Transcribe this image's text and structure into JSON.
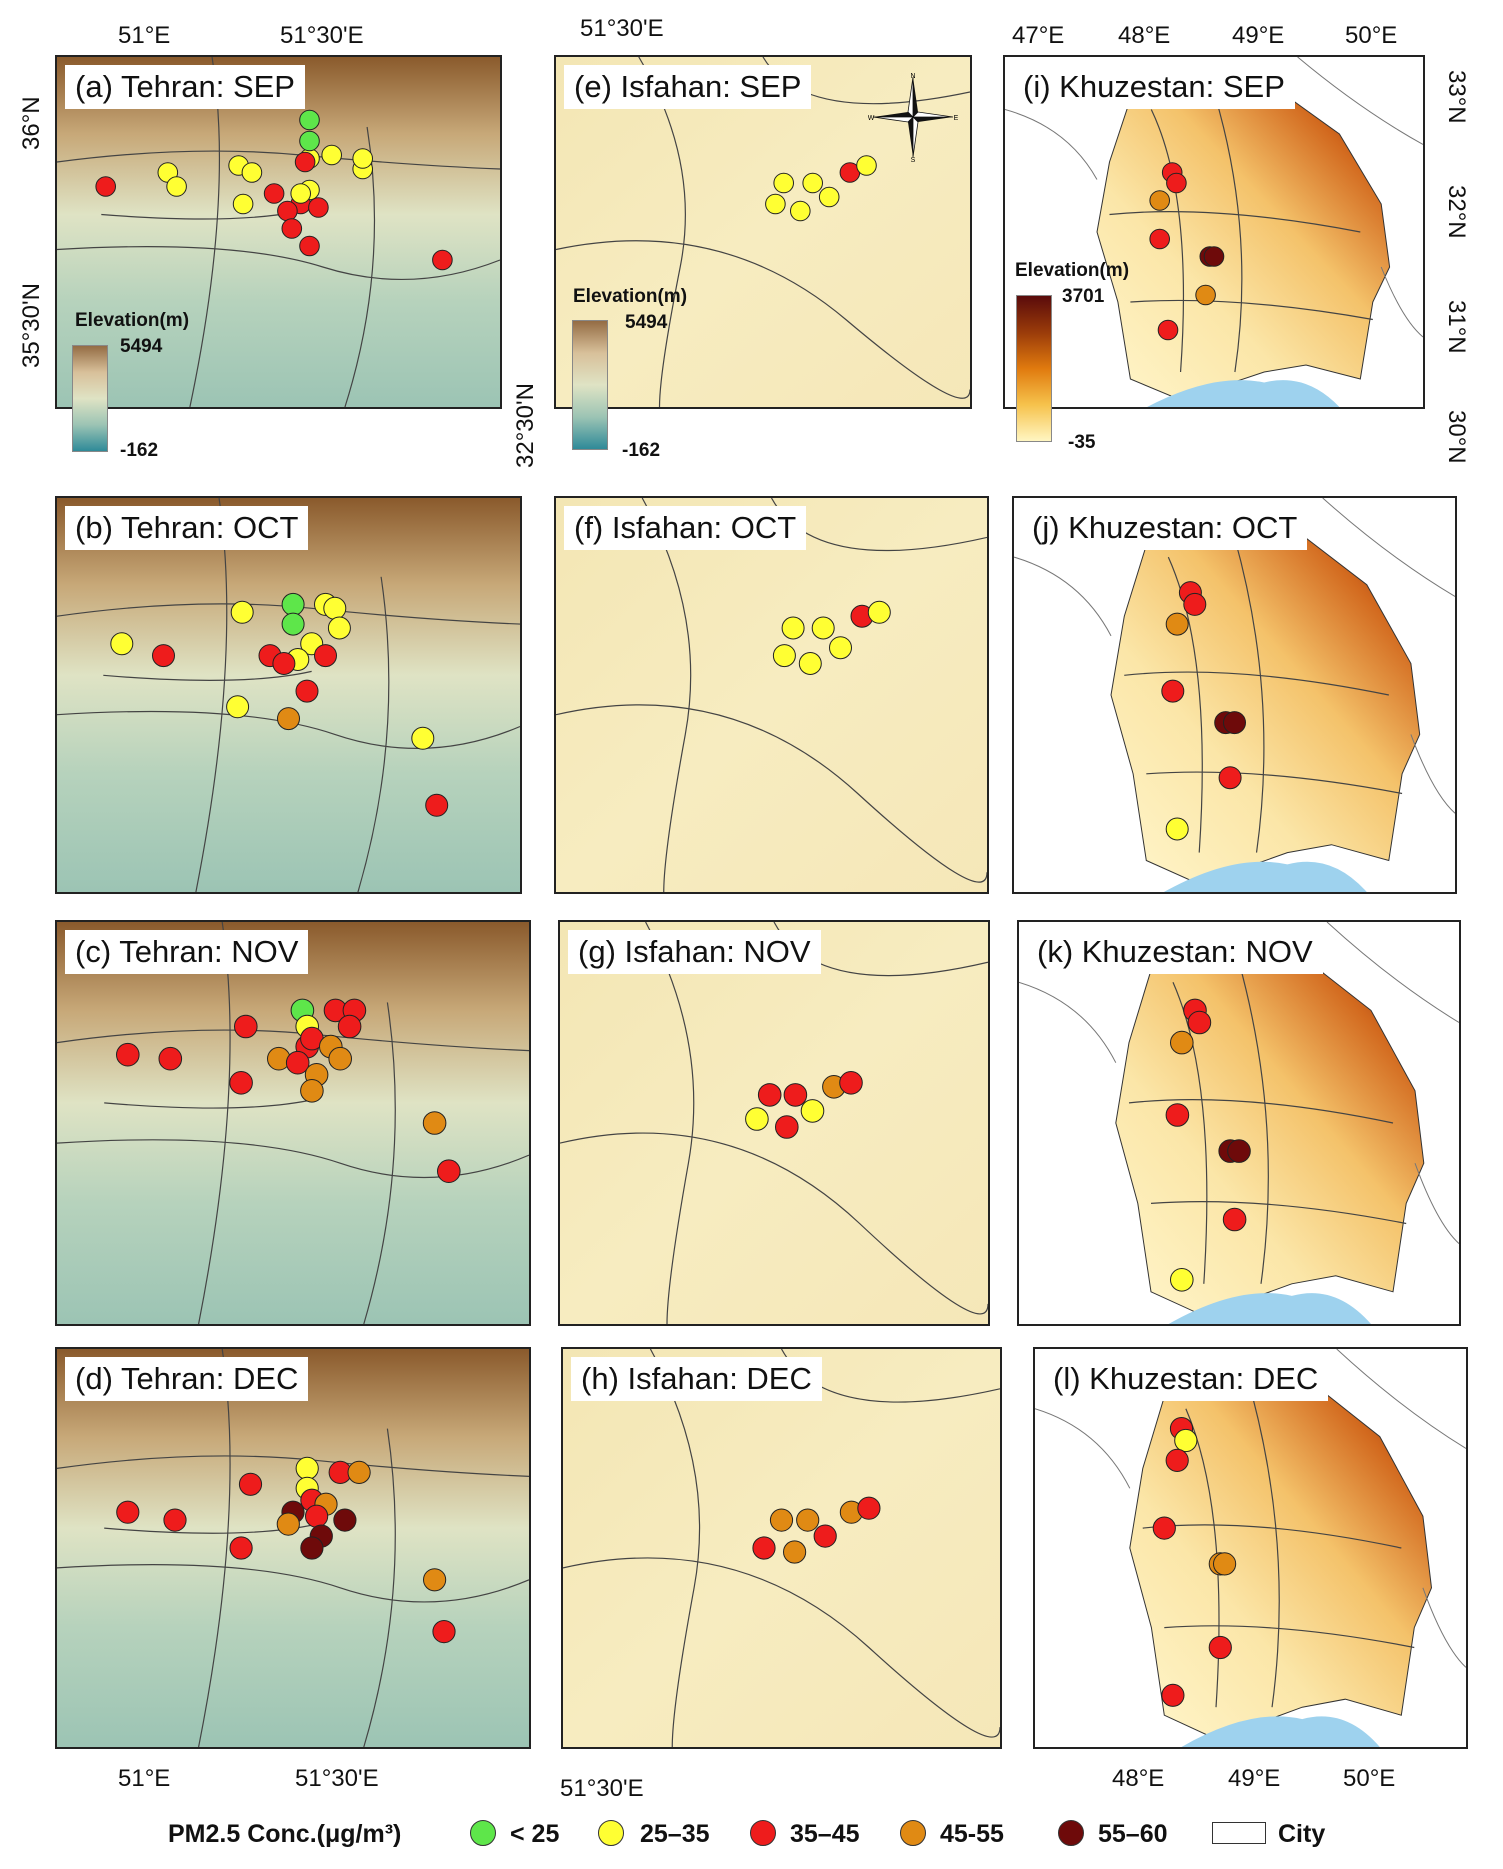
{
  "legend": {
    "title": "PM2.5 Conc.(μg/m³)",
    "classes": [
      {
        "label": "< 25",
        "color": "#5ee64a"
      },
      {
        "label": "25–35",
        "color": "#ffff33"
      },
      {
        "label": "35–45",
        "color": "#ee1c1c"
      },
      {
        "label": "45-55",
        "color": "#e08a14"
      },
      {
        "label": "55–60",
        "color": "#6e0a0a"
      }
    ],
    "city_label": "City"
  },
  "axes": {
    "tehran_top": [
      "51°E",
      "51°30'E"
    ],
    "tehran_left": [
      "36°N",
      "35°30'N"
    ],
    "tehran_bottom": [
      "51°E",
      "51°30'E"
    ],
    "isfahan_top": "51°30'E",
    "isfahan_left": "32°30'N",
    "isfahan_bottom": "51°30'E",
    "khuz_top": [
      "47°E",
      "48°E",
      "49°E",
      "50°E"
    ],
    "khuz_right": [
      "33°N",
      "32°N",
      "31°N",
      "30°N"
    ],
    "khuz_bottom": [
      "48°E",
      "49°E",
      "50°E"
    ]
  },
  "elevation_legends": {
    "tehran": {
      "title": "Elevation(m)",
      "max": "5494",
      "min": "-162"
    },
    "isfahan": {
      "title": "Elevation(m)",
      "max": "5494",
      "min": "-162"
    },
    "khuzestan": {
      "title": "Elevation(m)",
      "max": "3701",
      "min": "-35"
    }
  },
  "panels": [
    {
      "title": "(a) Tehran: SEP",
      "region": "tehran",
      "stations": [
        [
          0.25,
          0.33,
          1
        ],
        [
          0.41,
          0.31,
          1
        ],
        [
          0.44,
          0.33,
          1
        ],
        [
          0.57,
          0.29,
          1
        ],
        [
          0.62,
          0.28,
          1
        ],
        [
          0.69,
          0.32,
          1
        ],
        [
          0.69,
          0.29,
          1
        ],
        [
          0.57,
          0.38,
          1
        ],
        [
          0.56,
          0.3,
          2
        ],
        [
          0.49,
          0.39,
          2
        ],
        [
          0.55,
          0.42,
          2
        ],
        [
          0.52,
          0.44,
          2
        ],
        [
          0.59,
          0.43,
          2
        ],
        [
          0.53,
          0.49,
          2
        ],
        [
          0.57,
          0.54,
          2
        ],
        [
          0.87,
          0.58,
          2
        ],
        [
          0.11,
          0.37,
          2
        ],
        [
          0.27,
          0.37,
          1
        ],
        [
          0.42,
          0.42,
          1
        ],
        [
          0.55,
          0.39,
          1
        ],
        [
          0.57,
          0.18,
          0
        ],
        [
          0.57,
          0.24,
          0
        ]
      ]
    },
    {
      "title": "(e) Isfahan: SEP",
      "region": "isfahan",
      "stations": [
        [
          0.55,
          0.36,
          1
        ],
        [
          0.62,
          0.36,
          1
        ],
        [
          0.66,
          0.4,
          1
        ],
        [
          0.59,
          0.44,
          1
        ],
        [
          0.53,
          0.42,
          1
        ],
        [
          0.71,
          0.33,
          2
        ],
        [
          0.75,
          0.31,
          1
        ]
      ]
    },
    {
      "title": "(i) Khuzestan: SEP",
      "region": "khuz",
      "stations": [
        [
          0.4,
          0.33,
          2
        ],
        [
          0.41,
          0.36,
          2
        ],
        [
          0.37,
          0.41,
          3
        ],
        [
          0.37,
          0.52,
          2
        ],
        [
          0.49,
          0.57,
          4
        ],
        [
          0.5,
          0.57,
          4
        ],
        [
          0.48,
          0.68,
          3
        ],
        [
          0.39,
          0.78,
          2
        ]
      ]
    },
    {
      "title": "(b) Tehran: OCT",
      "region": "tehran",
      "stations": [
        [
          0.14,
          0.37,
          1
        ],
        [
          0.23,
          0.4,
          2
        ],
        [
          0.4,
          0.29,
          1
        ],
        [
          0.51,
          0.27,
          0
        ],
        [
          0.51,
          0.32,
          0
        ],
        [
          0.58,
          0.27,
          1
        ],
        [
          0.6,
          0.28,
          1
        ],
        [
          0.61,
          0.33,
          1
        ],
        [
          0.55,
          0.37,
          1
        ],
        [
          0.52,
          0.41,
          1
        ],
        [
          0.46,
          0.4,
          2
        ],
        [
          0.49,
          0.42,
          2
        ],
        [
          0.58,
          0.4,
          2
        ],
        [
          0.54,
          0.49,
          2
        ],
        [
          0.5,
          0.56,
          3
        ],
        [
          0.39,
          0.53,
          1
        ],
        [
          0.79,
          0.61,
          1
        ],
        [
          0.82,
          0.78,
          2
        ]
      ]
    },
    {
      "title": "(f) Isfahan: OCT",
      "region": "isfahan",
      "stations": [
        [
          0.55,
          0.33,
          1
        ],
        [
          0.62,
          0.33,
          1
        ],
        [
          0.66,
          0.38,
          1
        ],
        [
          0.59,
          0.42,
          1
        ],
        [
          0.53,
          0.4,
          1
        ],
        [
          0.71,
          0.3,
          2
        ],
        [
          0.75,
          0.29,
          1
        ]
      ]
    },
    {
      "title": "(j) Khuzestan: OCT",
      "region": "khuz",
      "stations": [
        [
          0.4,
          0.24,
          2
        ],
        [
          0.41,
          0.27,
          2
        ],
        [
          0.37,
          0.32,
          3
        ],
        [
          0.36,
          0.49,
          2
        ],
        [
          0.48,
          0.57,
          4
        ],
        [
          0.5,
          0.57,
          4
        ],
        [
          0.49,
          0.71,
          2
        ],
        [
          0.37,
          0.84,
          1
        ]
      ]
    },
    {
      "title": "(c) Tehran: NOV",
      "region": "tehran",
      "stations": [
        [
          0.15,
          0.33,
          2
        ],
        [
          0.24,
          0.34,
          2
        ],
        [
          0.4,
          0.26,
          2
        ],
        [
          0.52,
          0.22,
          0
        ],
        [
          0.53,
          0.26,
          1
        ],
        [
          0.59,
          0.22,
          2
        ],
        [
          0.63,
          0.22,
          2
        ],
        [
          0.62,
          0.26,
          2
        ],
        [
          0.53,
          0.31,
          2
        ],
        [
          0.54,
          0.29,
          2
        ],
        [
          0.47,
          0.34,
          3
        ],
        [
          0.51,
          0.35,
          2
        ],
        [
          0.58,
          0.31,
          3
        ],
        [
          0.6,
          0.34,
          3
        ],
        [
          0.55,
          0.38,
          3
        ],
        [
          0.39,
          0.4,
          2
        ],
        [
          0.54,
          0.42,
          3
        ],
        [
          0.8,
          0.5,
          3
        ],
        [
          0.83,
          0.62,
          2
        ]
      ]
    },
    {
      "title": "(g) Isfahan: NOV",
      "region": "isfahan",
      "stations": [
        [
          0.49,
          0.43,
          2
        ],
        [
          0.55,
          0.43,
          2
        ],
        [
          0.59,
          0.47,
          1
        ],
        [
          0.53,
          0.51,
          2
        ],
        [
          0.46,
          0.49,
          1
        ],
        [
          0.64,
          0.41,
          3
        ],
        [
          0.68,
          0.4,
          2
        ]
      ]
    },
    {
      "title": "(k) Khuzestan: NOV",
      "region": "khuz",
      "stations": [
        [
          0.4,
          0.22,
          2
        ],
        [
          0.41,
          0.25,
          2
        ],
        [
          0.37,
          0.3,
          3
        ],
        [
          0.36,
          0.48,
          2
        ],
        [
          0.48,
          0.57,
          4
        ],
        [
          0.5,
          0.57,
          4
        ],
        [
          0.49,
          0.74,
          2
        ],
        [
          0.37,
          0.89,
          1
        ]
      ]
    },
    {
      "title": "(d) Tehran: DEC",
      "region": "tehran",
      "stations": [
        [
          0.15,
          0.41,
          2
        ],
        [
          0.25,
          0.43,
          2
        ],
        [
          0.41,
          0.34,
          2
        ],
        [
          0.53,
          0.3,
          1
        ],
        [
          0.53,
          0.35,
          1
        ],
        [
          0.6,
          0.31,
          2
        ],
        [
          0.64,
          0.31,
          3
        ],
        [
          0.54,
          0.38,
          2
        ],
        [
          0.57,
          0.39,
          3
        ],
        [
          0.5,
          0.41,
          4
        ],
        [
          0.49,
          0.44,
          3
        ],
        [
          0.55,
          0.42,
          2
        ],
        [
          0.61,
          0.43,
          4
        ],
        [
          0.56,
          0.47,
          4
        ],
        [
          0.54,
          0.5,
          4
        ],
        [
          0.39,
          0.5,
          2
        ],
        [
          0.8,
          0.58,
          3
        ],
        [
          0.82,
          0.71,
          2
        ]
      ]
    },
    {
      "title": "(h) Isfahan: DEC",
      "region": "isfahan",
      "stations": [
        [
          0.5,
          0.43,
          3
        ],
        [
          0.56,
          0.43,
          3
        ],
        [
          0.6,
          0.47,
          2
        ],
        [
          0.53,
          0.51,
          3
        ],
        [
          0.46,
          0.5,
          2
        ],
        [
          0.66,
          0.41,
          3
        ],
        [
          0.7,
          0.4,
          2
        ]
      ]
    },
    {
      "title": "(l) Khuzestan: DEC",
      "region": "khuz",
      "stations": [
        [
          0.34,
          0.2,
          2
        ],
        [
          0.35,
          0.23,
          1
        ],
        [
          0.33,
          0.28,
          2
        ],
        [
          0.3,
          0.45,
          2
        ],
        [
          0.43,
          0.54,
          3
        ],
        [
          0.44,
          0.54,
          3
        ],
        [
          0.43,
          0.75,
          2
        ],
        [
          0.32,
          0.87,
          2
        ]
      ]
    }
  ]
}
